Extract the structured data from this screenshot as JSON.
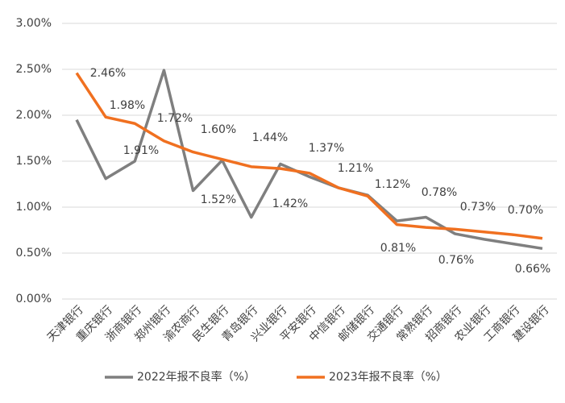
{
  "chart_data": {
    "type": "line",
    "categories": [
      "天津银行",
      "重庆银行",
      "浙商银行",
      "郑州银行",
      "渝农商行",
      "民生银行",
      "青岛银行",
      "兴业银行",
      "平安银行",
      "中信银行",
      "邮储银行",
      "交通银行",
      "常熟银行",
      "招商银行",
      "农业银行",
      "工商银行",
      "建设银行"
    ],
    "series": [
      {
        "name": "2022年报不良率（%）",
        "color": "#7f7f7f",
        "values": [
          1.95,
          1.31,
          1.5,
          2.49,
          1.18,
          1.51,
          0.89,
          1.47,
          1.33,
          1.21,
          1.13,
          0.85,
          0.89,
          0.71,
          0.65,
          0.6,
          0.55
        ]
      },
      {
        "name": "2023年报不良率（%）",
        "color": "#f07020",
        "values": [
          2.46,
          1.98,
          1.91,
          1.72,
          1.6,
          1.52,
          1.44,
          1.42,
          1.37,
          1.21,
          1.12,
          0.81,
          0.78,
          0.76,
          0.73,
          0.7,
          0.66
        ],
        "value_labels": [
          "2.46%",
          "1.98%",
          "1.91%",
          "1.72%",
          "1.60%",
          "1.52%",
          "1.44%",
          "1.42%",
          "1.37%",
          "1.21%",
          "1.12%",
          "0.81%",
          "0.78%",
          "0.76%",
          "0.73%",
          "0.70%",
          "0.66%"
        ]
      }
    ],
    "ylim": [
      0,
      3
    ],
    "yticks": [
      {
        "value": 0,
        "label": "0.00%"
      },
      {
        "value": 0.5,
        "label": "0.50%"
      },
      {
        "value": 1,
        "label": "1.00%"
      },
      {
        "value": 1.5,
        "label": "1.50%"
      },
      {
        "value": 2,
        "label": "2.00%"
      },
      {
        "value": 2.5,
        "label": "2.50%"
      },
      {
        "value": 3,
        "label": "3.00%"
      }
    ],
    "grid": true,
    "legend": "bottom"
  }
}
